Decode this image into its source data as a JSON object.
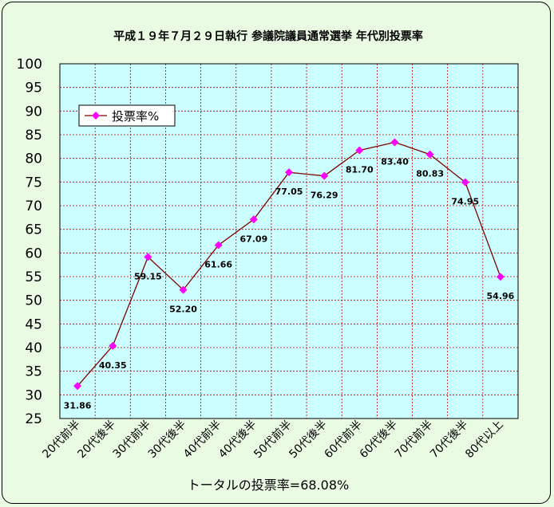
{
  "chart_data": {
    "type": "line",
    "title": "平成１９年７月２９日執行 参議院議員通常選挙 年代別投票率",
    "categories": [
      "20代前半",
      "20代後半",
      "30代前半",
      "30代後半",
      "40代前半",
      "40代後半",
      "50代前半",
      "50代後半",
      "60代前半",
      "60代後半",
      "70代前半",
      "70代後半",
      "80代以上"
    ],
    "series": [
      {
        "name": "投票率%",
        "values": [
          31.86,
          40.35,
          59.15,
          52.2,
          61.66,
          67.09,
          77.05,
          76.29,
          81.7,
          83.4,
          80.83,
          74.95,
          54.96
        ],
        "labels": [
          "31.86",
          "40.35",
          "59.15",
          "52.20",
          "61.66",
          "67.09",
          "77.05",
          "76.29",
          "81.70",
          "83.40",
          "80.83",
          "74.95",
          "54.96"
        ]
      }
    ],
    "ylim": [
      25,
      100
    ],
    "yticks": [
      "25",
      "30",
      "35",
      "40",
      "45",
      "50",
      "55",
      "60",
      "65",
      "70",
      "75",
      "80",
      "85",
      "90",
      "95",
      "100"
    ],
    "grid": true,
    "legend": "top-left",
    "xlabel": "トータルの投票率=68.08%",
    "ylabel": ""
  },
  "colors": {
    "plot_bg": "#ccffff",
    "line": "#800000",
    "marker": "#ff00ff",
    "grid": "#c00000"
  }
}
